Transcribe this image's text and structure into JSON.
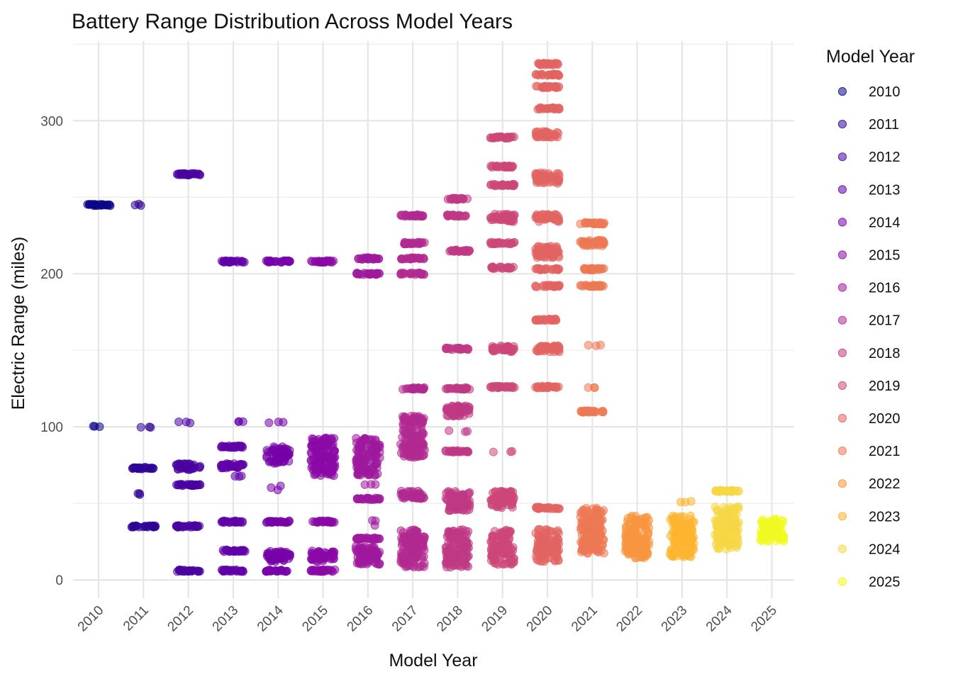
{
  "chart_data": {
    "type": "scatter",
    "title": "Battery Range Distribution Across Model Years",
    "xlabel": "Model Year",
    "ylabel": "Electric Range (miles)",
    "x_categories": [
      "2010",
      "2011",
      "2012",
      "2013",
      "2014",
      "2015",
      "2016",
      "2017",
      "2018",
      "2019",
      "2020",
      "2021",
      "2022",
      "2023",
      "2024",
      "2025"
    ],
    "ylim": [
      -12,
      352
    ],
    "y_ticks": [
      0,
      100,
      200,
      300
    ],
    "y_tick_labels": [
      "0",
      "100",
      "200",
      "300"
    ],
    "grid": true,
    "jitter": true,
    "legend": {
      "title": "Model Year",
      "position": "right",
      "entries": [
        "2010",
        "2011",
        "2012",
        "2013",
        "2014",
        "2015",
        "2016",
        "2017",
        "2018",
        "2019",
        "2020",
        "2021",
        "2022",
        "2023",
        "2024",
        "2025"
      ]
    },
    "colors": {
      "2010": "#0d0887",
      "2011": "#2f0596",
      "2012": "#4903a0",
      "2013": "#6100a7",
      "2014": "#7701a8",
      "2015": "#8b0aa5",
      "2016": "#9e199d",
      "2017": "#b12a90",
      "2018": "#bf3984",
      "2019": "#cc4778",
      "2020": "#e16462",
      "2021": "#ec7853",
      "2022": "#f89540",
      "2023": "#fdb42f",
      "2024": "#f6d746",
      "2025": "#f0f921"
    },
    "series": [
      {
        "name": "2010",
        "range_clusters": [
          [
            245,
            245,
            "dense"
          ],
          [
            100,
            100,
            "sparse"
          ]
        ]
      },
      {
        "name": "2011",
        "range_clusters": [
          [
            245,
            245,
            "sparse"
          ],
          [
            100,
            100,
            "sparse"
          ],
          [
            73,
            73,
            "dense"
          ],
          [
            56,
            56,
            "sparse"
          ],
          [
            35,
            35,
            "dense"
          ]
        ]
      },
      {
        "name": "2012",
        "range_clusters": [
          [
            265,
            265,
            "dense"
          ],
          [
            103,
            103,
            "sparse"
          ],
          [
            76,
            72,
            "dense"
          ],
          [
            62,
            62,
            "dense"
          ],
          [
            35,
            35,
            "dense"
          ],
          [
            6,
            6,
            "dense"
          ]
        ]
      },
      {
        "name": "2013",
        "range_clusters": [
          [
            208,
            208,
            "dense"
          ],
          [
            103,
            103,
            "sparse"
          ],
          [
            87,
            87,
            "dense"
          ],
          [
            76,
            73,
            "dense"
          ],
          [
            68,
            68,
            "sparse"
          ],
          [
            38,
            38,
            "dense"
          ],
          [
            19,
            19,
            "dense"
          ],
          [
            6,
            6,
            "dense"
          ]
        ]
      },
      {
        "name": "2014",
        "range_clusters": [
          [
            208,
            208,
            "dense"
          ],
          [
            103,
            103,
            "sparse"
          ],
          [
            87,
            76,
            "dense"
          ],
          [
            62,
            56,
            "sparse"
          ],
          [
            38,
            38,
            "dense"
          ],
          [
            19,
            12,
            "dense"
          ],
          [
            6,
            6,
            "dense"
          ]
        ]
      },
      {
        "name": "2015",
        "range_clusters": [
          [
            208,
            208,
            "dense"
          ],
          [
            93,
            68,
            "dense"
          ],
          [
            38,
            38,
            "dense"
          ],
          [
            19,
            12,
            "dense"
          ],
          [
            6,
            6,
            "dense"
          ]
        ]
      },
      {
        "name": "2016",
        "range_clusters": [
          [
            210,
            210,
            "dense"
          ],
          [
            200,
            200,
            "dense"
          ],
          [
            93,
            68,
            "dense"
          ],
          [
            62,
            62,
            "sparse"
          ],
          [
            53,
            53,
            "dense"
          ],
          [
            40,
            35,
            "sparse"
          ],
          [
            27,
            27,
            "dense"
          ],
          [
            22,
            10,
            "dense"
          ]
        ]
      },
      {
        "name": "2017",
        "range_clusters": [
          [
            238,
            238,
            "dense"
          ],
          [
            220,
            220,
            "dense"
          ],
          [
            210,
            210,
            "dense"
          ],
          [
            200,
            200,
            "dense"
          ],
          [
            125,
            125,
            "dense"
          ],
          [
            107,
            80,
            "dense"
          ],
          [
            58,
            53,
            "dense"
          ],
          [
            33,
            8,
            "dense"
          ]
        ]
      },
      {
        "name": "2018",
        "range_clusters": [
          [
            249,
            249,
            "dense"
          ],
          [
            238,
            238,
            "dense"
          ],
          [
            215,
            215,
            "dense"
          ],
          [
            151,
            151,
            "dense"
          ],
          [
            125,
            125,
            "dense"
          ],
          [
            114,
            107,
            "dense"
          ],
          [
            97,
            97,
            "sparse"
          ],
          [
            84,
            84,
            "dense"
          ],
          [
            58,
            45,
            "dense"
          ],
          [
            33,
            8,
            "dense"
          ]
        ]
      },
      {
        "name": "2019",
        "range_clusters": [
          [
            289,
            289,
            "dense"
          ],
          [
            270,
            270,
            "dense"
          ],
          [
            258,
            258,
            "dense"
          ],
          [
            239,
            234,
            "dense"
          ],
          [
            220,
            220,
            "dense"
          ],
          [
            204,
            204,
            "dense"
          ],
          [
            153,
            149,
            "dense"
          ],
          [
            126,
            126,
            "dense"
          ],
          [
            84,
            84,
            "sparse"
          ],
          [
            58,
            47,
            "dense"
          ],
          [
            33,
            10,
            "dense"
          ]
        ]
      },
      {
        "name": "2020",
        "range_clusters": [
          [
            337,
            337,
            "dense"
          ],
          [
            330,
            330,
            "dense"
          ],
          [
            322,
            322,
            "dense"
          ],
          [
            308,
            308,
            "dense"
          ],
          [
            293,
            289,
            "dense"
          ],
          [
            266,
            259,
            "dense"
          ],
          [
            239,
            234,
            "dense"
          ],
          [
            218,
            210,
            "dense"
          ],
          [
            203,
            203,
            "dense"
          ],
          [
            192,
            192,
            "dense"
          ],
          [
            170,
            170,
            "dense"
          ],
          [
            153,
            149,
            "dense"
          ],
          [
            126,
            126,
            "dense"
          ],
          [
            47,
            47,
            "dense"
          ],
          [
            33,
            12,
            "dense"
          ]
        ]
      },
      {
        "name": "2021",
        "range_clusters": [
          [
            233,
            233,
            "dense"
          ],
          [
            222,
            218,
            "dense"
          ],
          [
            203,
            203,
            "dense"
          ],
          [
            192,
            192,
            "dense"
          ],
          [
            153,
            153,
            "sparse"
          ],
          [
            126,
            126,
            "sparse"
          ],
          [
            110,
            110,
            "dense"
          ],
          [
            47,
            17,
            "dense"
          ]
        ]
      },
      {
        "name": "2022",
        "range_clusters": [
          [
            42,
            14,
            "dense"
          ]
        ]
      },
      {
        "name": "2023",
        "range_clusters": [
          [
            51,
            51,
            "sparse"
          ],
          [
            42,
            14,
            "dense"
          ]
        ]
      },
      {
        "name": "2024",
        "range_clusters": [
          [
            58,
            58,
            "dense"
          ],
          [
            48,
            20,
            "dense"
          ]
        ]
      },
      {
        "name": "2025",
        "range_clusters": [
          [
            40,
            25,
            "dense"
          ]
        ]
      }
    ]
  }
}
